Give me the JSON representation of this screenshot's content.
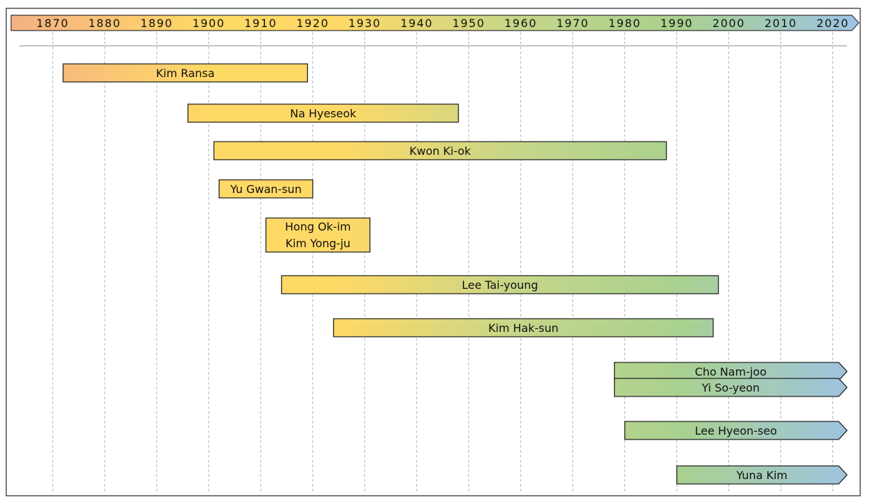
{
  "chart_data": {
    "type": "timeline",
    "x_range": [
      1862,
      2025
    ],
    "axis_ticks": [
      1870,
      1880,
      1890,
      1900,
      1910,
      1920,
      1930,
      1940,
      1950,
      1960,
      1970,
      1980,
      1990,
      2000,
      2010,
      2020
    ],
    "grid": true,
    "colors": {
      "start": "#F4B183",
      "early": "#FFD966",
      "middle": "#C5D68A",
      "late": "#A9D18E",
      "end": "#9DC3E6",
      "stroke": "#222222"
    },
    "bars": [
      {
        "labels": [
          "Kim Ransa"
        ],
        "start": 1872,
        "end": 1919,
        "ongoing": false
      },
      {
        "labels": [
          "Na Hyeseok"
        ],
        "start": 1896,
        "end": 1948,
        "ongoing": false
      },
      {
        "labels": [
          "Kwon Ki-ok"
        ],
        "start": 1901,
        "end": 1988,
        "ongoing": false
      },
      {
        "labels": [
          "Yu Gwan-sun"
        ],
        "start": 1902,
        "end": 1920,
        "ongoing": false
      },
      {
        "labels": [
          "Hong Ok-im",
          "Kim Yong-ju"
        ],
        "start": 1911,
        "end": 1931,
        "ongoing": false
      },
      {
        "labels": [
          "Lee Tai-young"
        ],
        "start": 1914,
        "end": 1998,
        "ongoing": false
      },
      {
        "labels": [
          "Kim Hak-sun"
        ],
        "start": 1924,
        "end": 1997,
        "ongoing": false
      },
      {
        "labels": [
          "Cho Nam-joo"
        ],
        "start": 1978,
        "end": 2024,
        "ongoing": true
      },
      {
        "labels": [
          "Yi So-yeon"
        ],
        "start": 1978,
        "end": 2024,
        "ongoing": true
      },
      {
        "labels": [
          "Lee Hyeon-seo"
        ],
        "start": 1980,
        "end": 2024,
        "ongoing": true
      },
      {
        "labels": [
          "Yuna Kim"
        ],
        "start": 1990,
        "end": 2024,
        "ongoing": true
      }
    ]
  }
}
